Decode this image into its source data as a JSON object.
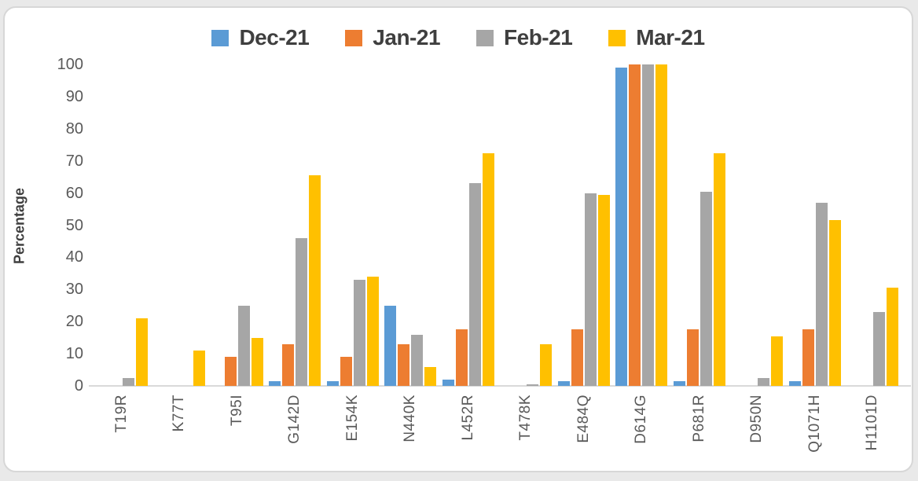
{
  "legend": {
    "items": [
      {
        "label": "Dec-21",
        "color": "#5B9BD5"
      },
      {
        "label": "Jan-21",
        "color": "#ED7D31"
      },
      {
        "label": "Feb-21",
        "color": "#A6A6A6"
      },
      {
        "label": "Mar-21",
        "color": "#FFC000"
      }
    ]
  },
  "y_axis": {
    "title": "Percentage",
    "ticks": [
      100,
      90,
      80,
      70,
      60,
      50,
      40,
      30,
      20,
      10,
      0
    ]
  },
  "chart_data": {
    "type": "bar",
    "title": "",
    "xlabel": "",
    "ylabel": "Percentage",
    "ylim": [
      0,
      100
    ],
    "grid": false,
    "legend_position": "top",
    "categories": [
      "T19R",
      "K77T",
      "T95I",
      "G142D",
      "E154K",
      "N440K",
      "L452R",
      "T478K",
      "E484Q",
      "D614G",
      "P681R",
      "D950N",
      "Q1071H",
      "H1101D"
    ],
    "series": [
      {
        "name": "Dec-21",
        "color": "#5B9BD5",
        "values": [
          0,
          0,
          0,
          1.5,
          1.5,
          25,
          2,
          0,
          1.5,
          99,
          1.5,
          0,
          1.5,
          0
        ]
      },
      {
        "name": "Jan-21",
        "color": "#ED7D31",
        "values": [
          0,
          0,
          9,
          13,
          9,
          13,
          17.5,
          0,
          17.5,
          100,
          17.5,
          0,
          17.5,
          0
        ]
      },
      {
        "name": "Feb-21",
        "color": "#A6A6A6",
        "values": [
          2.5,
          0,
          25,
          46,
          33,
          16,
          63,
          0.5,
          60,
          100,
          60.5,
          2.5,
          57,
          23
        ]
      },
      {
        "name": "Mar-21",
        "color": "#FFC000",
        "values": [
          21,
          11,
          15,
          65.5,
          34,
          6,
          72.5,
          13,
          59.5,
          100,
          72.5,
          15.5,
          51.5,
          30.5
        ]
      }
    ]
  }
}
